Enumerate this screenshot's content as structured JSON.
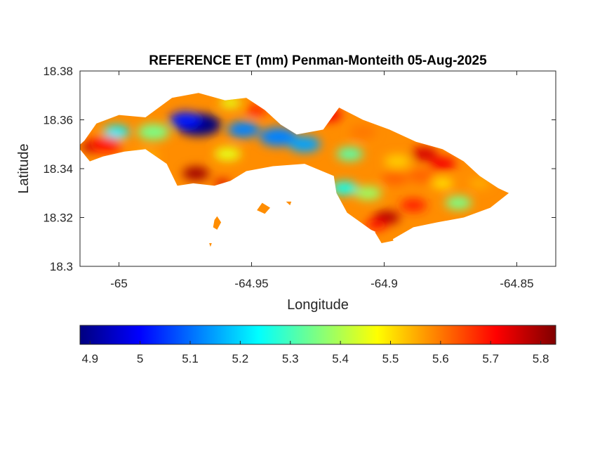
{
  "chart_data": {
    "type": "heatmap",
    "title": "REFERENCE ET (mm) Penman-Monteith 05-Aug-2025",
    "xlabel": "Longitude",
    "ylabel": "Latitude",
    "xlim": [
      -65.0147,
      -64.8353
    ],
    "ylim": [
      18.3,
      18.38
    ],
    "xticks": [
      -65,
      -64.95,
      -64.9,
      -64.85
    ],
    "xtick_labels": [
      "-65",
      "-64.95",
      "-64.9",
      "-64.85"
    ],
    "yticks": [
      18.3,
      18.32,
      18.34,
      18.36,
      18.38
    ],
    "ytick_labels": [
      "18.3",
      "18.32",
      "18.34",
      "18.36",
      "18.38"
    ],
    "grid": false,
    "colormap": "jet",
    "colorbar": {
      "placement": "bottom",
      "range": [
        4.88,
        5.83
      ],
      "ticks": [
        4.9,
        5.0,
        5.1,
        5.2,
        5.3,
        5.4,
        5.5,
        5.6,
        5.7,
        5.8
      ],
      "tick_labels": [
        "4.9",
        "5",
        "5.1",
        "5.2",
        "5.3",
        "5.4",
        "5.5",
        "5.6",
        "5.7",
        "5.8"
      ]
    },
    "land_outline": [
      [
        -65.013,
        18.3515
      ],
      [
        -65.0085,
        18.3585
      ],
      [
        -65.0,
        18.362
      ],
      [
        -64.99,
        18.361
      ],
      [
        -64.98,
        18.369
      ],
      [
        -64.97,
        18.371
      ],
      [
        -64.96,
        18.368
      ],
      [
        -64.952,
        18.369
      ],
      [
        -64.945,
        18.364
      ],
      [
        -64.939,
        18.358
      ],
      [
        -64.933,
        18.354
      ],
      [
        -64.923,
        18.356
      ],
      [
        -64.917,
        18.365
      ],
      [
        -64.908,
        18.36
      ],
      [
        -64.898,
        18.356
      ],
      [
        -64.888,
        18.351
      ],
      [
        -64.878,
        18.348
      ],
      [
        -64.87,
        18.343
      ],
      [
        -64.864,
        18.337
      ],
      [
        -64.857,
        18.332
      ],
      [
        -64.853,
        18.33
      ],
      [
        -64.86,
        18.324
      ],
      [
        -64.87,
        18.32
      ],
      [
        -64.88,
        18.318
      ],
      [
        -64.889,
        18.316
      ],
      [
        -64.897,
        18.311
      ],
      [
        -64.905,
        18.315
      ],
      [
        -64.914,
        18.322
      ],
      [
        -64.918,
        18.33
      ],
      [
        -64.919,
        18.337
      ],
      [
        -64.93,
        18.342
      ],
      [
        -64.942,
        18.341
      ],
      [
        -64.952,
        18.339
      ],
      [
        -64.958,
        18.335
      ],
      [
        -64.964,
        18.333
      ],
      [
        -64.972,
        18.334
      ],
      [
        -64.978,
        18.333
      ],
      [
        -64.982,
        18.342
      ],
      [
        -64.99,
        18.348
      ],
      [
        -64.998,
        18.347
      ],
      [
        -65.006,
        18.345
      ],
      [
        -65.011,
        18.343
      ],
      [
        -65.0155,
        18.349
      ]
    ],
    "islets": [
      [
        [
          -64.948,
          18.323
        ],
        [
          -64.946,
          18.326
        ],
        [
          -64.943,
          18.324
        ],
        [
          -64.945,
          18.3215
        ]
      ],
      [
        [
          -64.964,
          18.319
        ],
        [
          -64.963,
          18.3205
        ],
        [
          -64.9615,
          18.318
        ],
        [
          -64.963,
          18.315
        ],
        [
          -64.9645,
          18.316
        ]
      ],
      [
        [
          -64.9035,
          18.314
        ],
        [
          -64.898,
          18.315
        ],
        [
          -64.8965,
          18.3105
        ],
        [
          -64.901,
          18.3095
        ]
      ],
      [
        [
          -64.937,
          18.3265
        ],
        [
          -64.935,
          18.3265
        ],
        [
          -64.9355,
          18.325
        ]
      ],
      [
        [
          -64.966,
          18.3095
        ],
        [
          -64.965,
          18.3095
        ],
        [
          -64.9655,
          18.308
        ]
      ]
    ],
    "hotspots": [
      {
        "lon": -64.97,
        "lat": 18.358,
        "value": 4.88,
        "radius": 0.0085
      },
      {
        "lon": -64.975,
        "lat": 18.36,
        "value": 5.02,
        "radius": 0.006
      },
      {
        "lon": -64.953,
        "lat": 18.356,
        "value": 5.12,
        "radius": 0.006
      },
      {
        "lon": -64.94,
        "lat": 18.353,
        "value": 5.12,
        "radius": 0.007
      },
      {
        "lon": -64.93,
        "lat": 18.35,
        "value": 5.15,
        "radius": 0.006
      },
      {
        "lon": -65.001,
        "lat": 18.355,
        "value": 5.22,
        "radius": 0.005
      },
      {
        "lon": -64.987,
        "lat": 18.355,
        "value": 5.35,
        "radius": 0.006
      },
      {
        "lon": -64.915,
        "lat": 18.332,
        "value": 5.25,
        "radius": 0.005
      },
      {
        "lon": -64.913,
        "lat": 18.346,
        "value": 5.32,
        "radius": 0.005
      },
      {
        "lon": -64.906,
        "lat": 18.33,
        "value": 5.38,
        "radius": 0.005
      },
      {
        "lon": -64.872,
        "lat": 18.326,
        "value": 5.35,
        "radius": 0.005
      },
      {
        "lon": -64.878,
        "lat": 18.334,
        "value": 5.5,
        "radius": 0.004
      },
      {
        "lon": -64.895,
        "lat": 18.343,
        "value": 5.52,
        "radius": 0.005
      },
      {
        "lon": -64.959,
        "lat": 18.346,
        "value": 5.45,
        "radius": 0.005
      },
      {
        "lon": -64.99,
        "lat": 18.345,
        "value": 5.55,
        "radius": 0.005
      },
      {
        "lon": -65.005,
        "lat": 18.35,
        "value": 5.7,
        "radius": 0.006
      },
      {
        "lon": -65.01,
        "lat": 18.349,
        "value": 5.78,
        "radius": 0.004
      },
      {
        "lon": -64.971,
        "lat": 18.338,
        "value": 5.8,
        "radius": 0.005
      },
      {
        "lon": -64.961,
        "lat": 18.334,
        "value": 5.75,
        "radius": 0.003
      },
      {
        "lon": -64.958,
        "lat": 18.367,
        "value": 5.45,
        "radius": 0.004
      },
      {
        "lon": -64.948,
        "lat": 18.364,
        "value": 5.68,
        "radius": 0.004
      },
      {
        "lon": -64.933,
        "lat": 18.364,
        "value": 5.65,
        "radius": 0.004
      },
      {
        "lon": -64.921,
        "lat": 18.362,
        "value": 5.72,
        "radius": 0.005
      },
      {
        "lon": -64.908,
        "lat": 18.355,
        "value": 5.6,
        "radius": 0.005
      },
      {
        "lon": -64.885,
        "lat": 18.346,
        "value": 5.75,
        "radius": 0.005
      },
      {
        "lon": -64.878,
        "lat": 18.342,
        "value": 5.72,
        "radius": 0.005
      },
      {
        "lon": -64.889,
        "lat": 18.325,
        "value": 5.68,
        "radius": 0.005
      },
      {
        "lon": -64.899,
        "lat": 18.32,
        "value": 5.78,
        "radius": 0.005
      },
      {
        "lon": -64.903,
        "lat": 18.317,
        "value": 5.7,
        "radius": 0.004
      },
      {
        "lon": -64.886,
        "lat": 18.337,
        "value": 5.62,
        "radius": 0.005
      },
      {
        "lon": -64.896,
        "lat": 18.336,
        "value": 5.62,
        "radius": 0.005
      },
      {
        "lon": -64.864,
        "lat": 18.334,
        "value": 5.55,
        "radius": 0.004
      }
    ],
    "base_value": 5.58
  }
}
